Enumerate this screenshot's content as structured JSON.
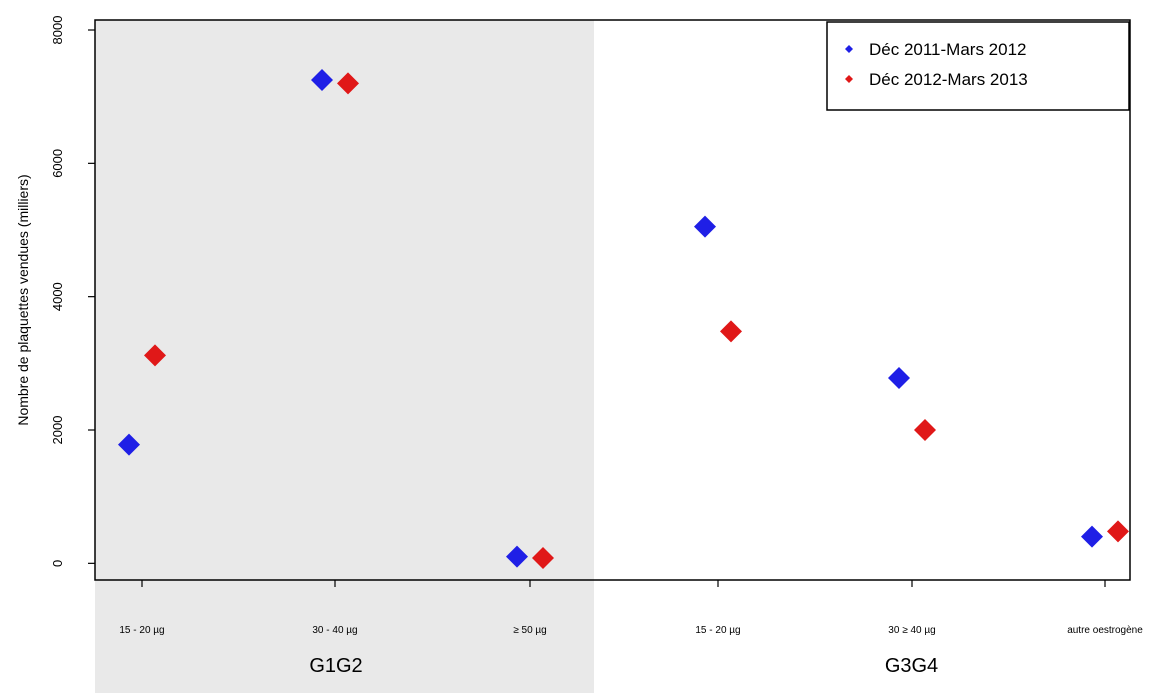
{
  "chart_data": {
    "type": "scatter",
    "ylabel": "Nombre de plaquettes vendues (milliers)",
    "ylim": [
      -250,
      8150
    ],
    "yticks": [
      0,
      2000,
      4000,
      6000,
      8000
    ],
    "ytick_labels": [
      "0",
      "2000",
      "4000",
      "6000",
      "8000"
    ],
    "categories": [
      "15 - 20 µg",
      "30 - 40 µg",
      "≥ 50 µg",
      "15 - 20 µg",
      "30 ≥ 40 µg",
      "autre oestrogène"
    ],
    "groups": [
      {
        "label": "G1G2",
        "categories": [
          0,
          1,
          2
        ],
        "shaded": true
      },
      {
        "label": "G3G4",
        "categories": [
          3,
          4,
          5
        ],
        "shaded": false
      }
    ],
    "series": [
      {
        "name": "Déc 2011-Mars 2012",
        "color": "#1f1fe6",
        "values": [
          1780,
          7250,
          100,
          5050,
          2780,
          400
        ]
      },
      {
        "name": "Déc 2012-Mars 2013",
        "color": "#e01818",
        "values": [
          3120,
          7200,
          80,
          3480,
          2000,
          480
        ]
      }
    ],
    "legend": {
      "placement": "top-right"
    },
    "grid": false,
    "marker": "diamond"
  },
  "colors": {
    "shade": "#e9e9e9",
    "axis": "#000000"
  }
}
